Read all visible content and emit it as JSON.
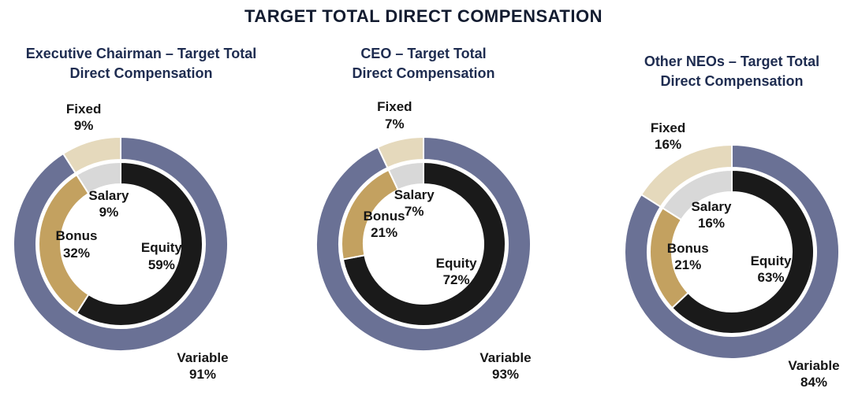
{
  "page_title": "TARGET TOTAL DIRECT COMPENSATION",
  "colors": {
    "Variable": "#6a7195",
    "Fixed": "#e5d9bc",
    "Equity": "#1a1a1a",
    "Bonus": "#c3a160",
    "Salary": "#d8d8d8"
  },
  "chart_data": [
    {
      "type": "pie",
      "subtype": "double-donut",
      "title": "Executive Chairman – Target Total\nDirect Compensation",
      "rings": {
        "outer": {
          "categories": [
            "Variable",
            "Fixed"
          ],
          "values": [
            91,
            9
          ]
        },
        "inner": {
          "categories": [
            "Equity",
            "Bonus",
            "Salary"
          ],
          "values": [
            59,
            32,
            9
          ]
        }
      },
      "labels": {
        "fixed": {
          "name": "Fixed",
          "value": "9%"
        },
        "salary": {
          "name": "Salary",
          "value": "9%"
        },
        "bonus": {
          "name": "Bonus",
          "value": "32%"
        },
        "equity": {
          "name": "Equity",
          "value": "59%"
        },
        "variable": {
          "name": "Variable",
          "value": "91%"
        }
      }
    },
    {
      "type": "pie",
      "subtype": "double-donut",
      "title": "CEO – Target Total\nDirect Compensation",
      "rings": {
        "outer": {
          "categories": [
            "Variable",
            "Fixed"
          ],
          "values": [
            93,
            7
          ]
        },
        "inner": {
          "categories": [
            "Equity",
            "Bonus",
            "Salary"
          ],
          "values": [
            72,
            21,
            7
          ]
        }
      },
      "labels": {
        "fixed": {
          "name": "Fixed",
          "value": "7%"
        },
        "salary": {
          "name": "Salary",
          "value": "7%"
        },
        "bonus": {
          "name": "Bonus",
          "value": "21%"
        },
        "equity": {
          "name": "Equity",
          "value": "72%"
        },
        "variable": {
          "name": "Variable",
          "value": "93%"
        }
      }
    },
    {
      "type": "pie",
      "subtype": "double-donut",
      "title": "Other NEOs – Target Total\nDirect Compensation",
      "rings": {
        "outer": {
          "categories": [
            "Variable",
            "Fixed"
          ],
          "values": [
            84,
            16
          ]
        },
        "inner": {
          "categories": [
            "Equity",
            "Bonus",
            "Salary"
          ],
          "values": [
            63,
            21,
            16
          ]
        }
      },
      "labels": {
        "fixed": {
          "name": "Fixed",
          "value": "16%"
        },
        "salary": {
          "name": "Salary",
          "value": "16%"
        },
        "bonus": {
          "name": "Bonus",
          "value": "21%"
        },
        "equity": {
          "name": "Equity",
          "value": "63%"
        },
        "variable": {
          "name": "Variable",
          "value": "84%"
        }
      }
    }
  ]
}
